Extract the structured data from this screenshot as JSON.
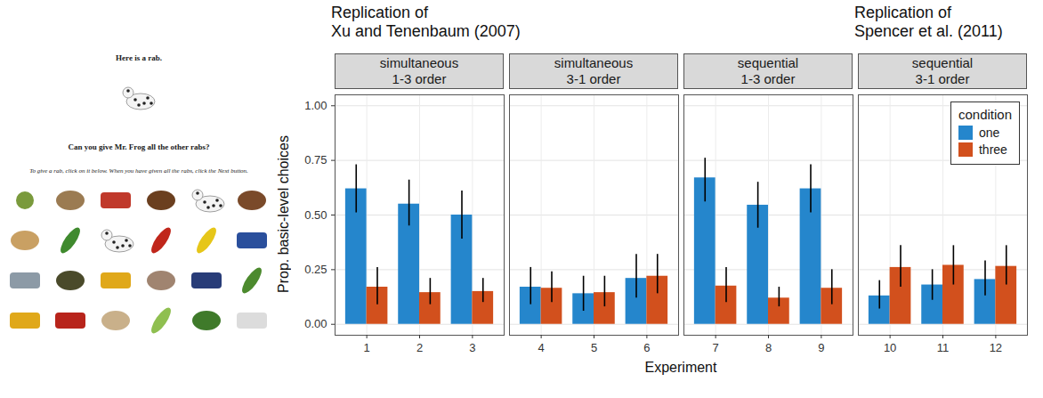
{
  "chart_data": {
    "type": "bar",
    "x_label": "Experiment",
    "y_label": "Prop. basic-level choices",
    "ylim": [
      -0.05,
      1.05
    ],
    "yticks": [
      {
        "value": 0,
        "label": "0.00"
      },
      {
        "value": 0.25,
        "label": "0.25"
      },
      {
        "value": 0.5,
        "label": "0.50"
      },
      {
        "value": 0.75,
        "label": "0.75"
      },
      {
        "value": 1,
        "label": "1.00"
      }
    ],
    "grid": true,
    "legend": "top-right",
    "legend_title": "condition",
    "annotations": [
      "Replication of Xu and Tenenbaum (2007)",
      "Replication of Spencer et al. (2011)"
    ],
    "panels": [
      {
        "title": "simultaneous 1-3 order",
        "categories": [
          "1",
          "2",
          "3"
        ],
        "series": [
          {
            "name": "one",
            "color": "#2586cc",
            "values": [
              0.62,
              0.55,
              0.5
            ],
            "error_low": [
              0.51,
              0.45,
              0.39
            ],
            "error_high": [
              0.73,
              0.66,
              0.61
            ]
          },
          {
            "name": "three",
            "color": "#d2501d",
            "values": [
              0.17,
              0.145,
              0.15
            ],
            "error_low": [
              0.09,
              0.09,
              0.1
            ],
            "error_high": [
              0.26,
              0.21,
              0.21
            ]
          }
        ]
      },
      {
        "title": "simultaneous 3-1 order",
        "categories": [
          "4",
          "5",
          "6"
        ],
        "series": [
          {
            "name": "one",
            "color": "#2586cc",
            "values": [
              0.17,
              0.14,
              0.21
            ],
            "error_low": [
              0.09,
              0.06,
              0.12
            ],
            "error_high": [
              0.26,
              0.22,
              0.32
            ]
          },
          {
            "name": "three",
            "color": "#d2501d",
            "values": [
              0.165,
              0.145,
              0.22
            ],
            "error_low": [
              0.1,
              0.08,
              0.14
            ],
            "error_high": [
              0.24,
              0.22,
              0.32
            ]
          }
        ]
      },
      {
        "title": "sequential 1-3 order",
        "categories": [
          "7",
          "8",
          "9"
        ],
        "series": [
          {
            "name": "one",
            "color": "#2586cc",
            "values": [
              0.67,
              0.545,
              0.62
            ],
            "error_low": [
              0.56,
              0.44,
              0.51
            ],
            "error_high": [
              0.76,
              0.65,
              0.73
            ]
          },
          {
            "name": "three",
            "color": "#d2501d",
            "values": [
              0.175,
              0.12,
              0.165
            ],
            "error_low": [
              0.1,
              0.08,
              0.09
            ],
            "error_high": [
              0.26,
              0.17,
              0.25
            ]
          }
        ]
      },
      {
        "title": "sequential 3-1 order",
        "categories": [
          "10",
          "11",
          "12"
        ],
        "series": [
          {
            "name": "one",
            "color": "#2586cc",
            "values": [
              0.13,
              0.18,
              0.205
            ],
            "error_low": [
              0.07,
              0.11,
              0.13
            ],
            "error_high": [
              0.2,
              0.25,
              0.29
            ]
          },
          {
            "name": "three",
            "color": "#d2501d",
            "values": [
              0.26,
              0.27,
              0.265
            ],
            "error_low": [
              0.17,
              0.18,
              0.18
            ],
            "error_high": [
              0.36,
              0.36,
              0.36
            ]
          }
        ]
      }
    ]
  },
  "screenshot": {
    "heading": "Here is a rab.",
    "question": "Can you give Mr. Frog all the other rabs?",
    "instructions": "To give a rab, click on it below. When you have given all the rabs, click the Next button."
  }
}
